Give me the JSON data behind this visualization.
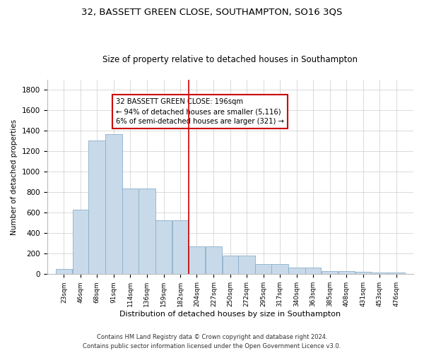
{
  "title": "32, BASSETT GREEN CLOSE, SOUTHAMPTON, SO16 3QS",
  "subtitle": "Size of property relative to detached houses in Southampton",
  "xlabel": "Distribution of detached houses by size in Southampton",
  "ylabel": "Number of detached properties",
  "bar_color": "#c8daea",
  "bar_edge_color": "#8aafc8",
  "annotation_box_color": "#cc0000",
  "vline_color": "#cc0000",
  "vline_x_index": 8,
  "annotation_title": "32 BASSETT GREEN CLOSE: 196sqm",
  "annotation_line1": "← 94% of detached houses are smaller (5,116)",
  "annotation_line2": "6% of semi-detached houses are larger (321) →",
  "footer1": "Contains HM Land Registry data © Crown copyright and database right 2024.",
  "footer2": "Contains public sector information licensed under the Open Government Licence v3.0.",
  "bins": [
    23,
    46,
    68,
    91,
    114,
    136,
    159,
    182,
    204,
    227,
    250,
    272,
    295,
    317,
    340,
    363,
    385,
    408,
    431,
    453,
    476
  ],
  "counts": [
    50,
    630,
    1310,
    1370,
    840,
    840,
    530,
    530,
    270,
    270,
    180,
    180,
    100,
    100,
    65,
    65,
    30,
    30,
    25,
    15,
    15
  ],
  "ylim": [
    0,
    1900
  ],
  "yticks": [
    0,
    200,
    400,
    600,
    800,
    1000,
    1200,
    1400,
    1600,
    1800
  ],
  "background_color": "#ffffff",
  "grid_color": "#cccccc",
  "title_fontsize": 9.5,
  "subtitle_fontsize": 8.5
}
